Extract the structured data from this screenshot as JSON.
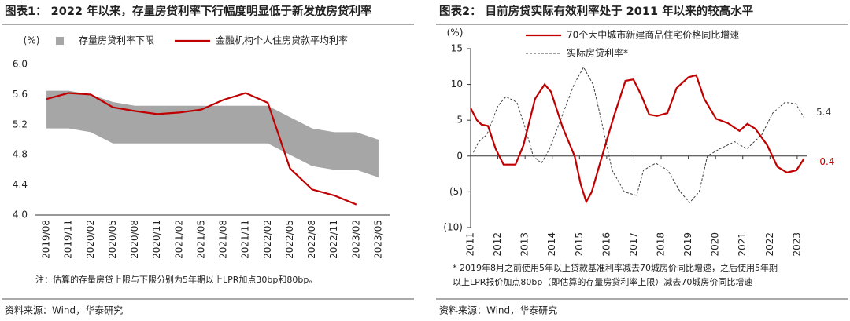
{
  "chart_data": [
    {
      "type": "line",
      "title": "图表1：  2022 年以来，存量房贷利率下行幅度明显低于新发放房贷利率",
      "unit": "(%)",
      "categories": [
        "2019/08",
        "2019/11",
        "2020/02",
        "2020/05",
        "2020/08",
        "2020/11",
        "2021/02",
        "2021/05",
        "2021/08",
        "2021/11",
        "2022/02",
        "2022/05",
        "2022/08",
        "2022/11",
        "2023/02",
        "2023/05"
      ],
      "ylim": [
        4.0,
        6.0
      ],
      "yticks": [
        {
          "value": 4.0,
          "label": "4.0"
        },
        4.4,
        4.8,
        5.2,
        5.6,
        {
          "value": 6.0,
          "label": "6.0"
        }
      ],
      "series": [
        {
          "name": "存量房贷利率下限",
          "kind": "range",
          "color": "#a6a6a6",
          "values": [
            5.65,
            5.65,
            5.6,
            5.5,
            5.45,
            5.45,
            5.45,
            5.45,
            5.45,
            5.45,
            5.45,
            5.3,
            5.15,
            5.1,
            5.1,
            5.0
          ],
          "lower": [
            5.15,
            5.15,
            5.1,
            4.95,
            4.95,
            4.95,
            4.95,
            4.95,
            4.95,
            4.95,
            4.95,
            4.8,
            4.65,
            4.6,
            4.6,
            4.5
          ]
        },
        {
          "name": "金融机构个人住房贷款平均利率",
          "color": "#c00000",
          "values": [
            5.54,
            5.62,
            5.6,
            5.43,
            5.38,
            5.34,
            5.36,
            5.4,
            5.53,
            5.62,
            5.49,
            4.62,
            4.34,
            4.26,
            4.14,
            null
          ]
        }
      ],
      "notes": [
        "注：估算的存量房贷上限与下限分别为5年期以上LPR加点30bp和80bp。"
      ],
      "source": "资料来源：Wind，华泰研究"
    },
    {
      "type": "line",
      "title": "图表2：  目前房贷实际有效利率处于 2011 年以来的较高水平",
      "unit": "(%)",
      "xlim": [
        2011,
        2023.35
      ],
      "xticks": [
        2011,
        2012,
        2013,
        2014,
        2015,
        2016,
        2017,
        2018,
        2019,
        2020,
        2021,
        2022,
        2023
      ],
      "ylim": [
        -10,
        15
      ],
      "yticks": [
        {
          "value": -10,
          "label": "(10)"
        },
        {
          "value": -5,
          "label": "(5)"
        },
        0,
        5,
        10,
        15
      ],
      "series": [
        {
          "name": "70个大中城市新建商品住宅价格同比增速",
          "color": "#c00000",
          "x": [
            2011.0,
            2011.23,
            2011.4,
            2011.64,
            2011.92,
            2012.21,
            2012.65,
            2012.94,
            2013.37,
            2013.72,
            2013.95,
            2014.38,
            2014.82,
            2015.05,
            2015.25,
            2015.45,
            2015.83,
            2016.26,
            2016.69,
            2016.98,
            2017.27,
            2017.56,
            2017.85,
            2018.23,
            2018.57,
            2019.0,
            2019.29,
            2019.58,
            2020.02,
            2020.45,
            2020.88,
            2021.17,
            2021.46,
            2021.9,
            2022.27,
            2022.62,
            2022.97,
            2023.25
          ],
          "values": [
            6.7,
            5,
            4.4,
            4.2,
            1.0,
            -1.2,
            -1.2,
            1.5,
            8,
            10,
            9,
            4,
            0,
            -4,
            -6.4,
            -5,
            0,
            5.5,
            10.5,
            10.7,
            8.5,
            5.8,
            5.6,
            6,
            9.5,
            11,
            11.3,
            8,
            5.2,
            4.6,
            3.5,
            4.5,
            3.8,
            1.5,
            -1.5,
            -2.3,
            -2.0,
            -0.4
          ]
        },
        {
          "name": "实际房贷利率*",
          "color": "#404040",
          "dashed": true,
          "x": [
            2011.1,
            2011.3,
            2011.6,
            2012.0,
            2012.3,
            2012.7,
            2013.0,
            2013.3,
            2013.6,
            2013.9,
            2014.3,
            2014.8,
            2015.15,
            2015.5,
            2015.8,
            2016.2,
            2016.65,
            2017.1,
            2017.35,
            2017.8,
            2018.25,
            2018.7,
            2019.05,
            2019.4,
            2019.7,
            2020.15,
            2020.7,
            2021.15,
            2021.7,
            2022.1,
            2022.55,
            2022.95,
            2023.25
          ],
          "values": [
            0.5,
            2,
            3,
            7,
            8.3,
            7.5,
            4,
            0,
            -1,
            1,
            5,
            10,
            12.4,
            10,
            5,
            -2,
            -5,
            -5.5,
            -2,
            -1,
            -2,
            -5,
            -6.5,
            -5,
            0,
            1,
            2,
            1,
            3,
            6,
            7.5,
            7.3,
            5.4
          ]
        }
      ],
      "notes": [
        "* 2019年8月之前使用5年以上贷款基准利率减去70城房价同比增速，之后使用5年期",
        "以上LPR报价加点80bp（即估算的存量房贷利率上限）减去70城房价同比增速"
      ],
      "source": "资料来源：Wind，华泰研究"
    }
  ]
}
